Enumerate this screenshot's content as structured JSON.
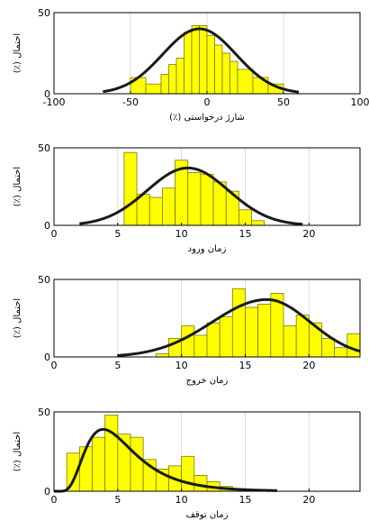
{
  "colors": {
    "bar_fill": "#ffff00",
    "bar_stroke": "#7a7a00",
    "curve": "#1a1a1a",
    "grid": "#dddddd",
    "axes": "#000000"
  },
  "chart_data": [
    {
      "type": "bar",
      "subtype": "histogram-with-fitted-curve",
      "xlabel": "شارژ درخواستی (٪)",
      "ylabel": "احتمال (٪)",
      "xlim": [
        -100,
        100
      ],
      "ylim": [
        0,
        50
      ],
      "xticks": [
        "-100",
        "-50",
        "0",
        "50",
        "100"
      ],
      "yticks": [
        "0",
        "50"
      ],
      "grid": true,
      "bins": [
        {
          "x0": -50,
          "x1": -40,
          "y": 10
        },
        {
          "x0": -40,
          "x1": -30,
          "y": 6
        },
        {
          "x0": -30,
          "x1": -25,
          "y": 12
        },
        {
          "x0": -25,
          "x1": -20,
          "y": 18
        },
        {
          "x0": -20,
          "x1": -15,
          "y": 22
        },
        {
          "x0": -15,
          "x1": -10,
          "y": 38
        },
        {
          "x0": -10,
          "x1": -5,
          "y": 42
        },
        {
          "x0": -5,
          "x1": 0,
          "y": 42
        },
        {
          "x0": 0,
          "x1": 5,
          "y": 36
        },
        {
          "x0": 5,
          "x1": 10,
          "y": 30
        },
        {
          "x0": 10,
          "x1": 15,
          "y": 25
        },
        {
          "x0": 15,
          "x1": 20,
          "y": 20
        },
        {
          "x0": 20,
          "x1": 30,
          "y": 15
        },
        {
          "x0": 30,
          "x1": 40,
          "y": 10
        },
        {
          "x0": 40,
          "x1": 50,
          "y": 6
        }
      ],
      "curve": {
        "distribution": "normal",
        "mean": -5,
        "sd": 24,
        "peak": 40,
        "xrange": [
          -68,
          60
        ]
      }
    },
    {
      "type": "bar",
      "subtype": "histogram-with-fitted-curve",
      "xlabel": "زمان ورود",
      "ylabel": "احتمال (٪)",
      "xlim": [
        0,
        24
      ],
      "ylim": [
        0,
        50
      ],
      "xticks": [
        "0",
        "5",
        "10",
        "15",
        "20"
      ],
      "yticks": [
        "0",
        "50"
      ],
      "grid": true,
      "bins": [
        {
          "x0": 5.5,
          "x1": 6.5,
          "y": 47
        },
        {
          "x0": 6.5,
          "x1": 7.5,
          "y": 20
        },
        {
          "x0": 7.5,
          "x1": 8.5,
          "y": 18
        },
        {
          "x0": 8.5,
          "x1": 9.5,
          "y": 24
        },
        {
          "x0": 9.5,
          "x1": 10.5,
          "y": 42
        },
        {
          "x0": 10.5,
          "x1": 11.5,
          "y": 34
        },
        {
          "x0": 11.5,
          "x1": 12.5,
          "y": 33
        },
        {
          "x0": 12.5,
          "x1": 13.5,
          "y": 28
        },
        {
          "x0": 13.5,
          "x1": 14.5,
          "y": 22
        },
        {
          "x0": 14.5,
          "x1": 15.5,
          "y": 10
        },
        {
          "x0": 15.5,
          "x1": 16.5,
          "y": 3
        }
      ],
      "curve": {
        "distribution": "normal",
        "mean": 10.5,
        "sd": 3.2,
        "peak": 37,
        "xrange": [
          2,
          19.5
        ]
      }
    },
    {
      "type": "bar",
      "subtype": "histogram-with-fitted-curve",
      "xlabel": "زمان خروج",
      "ylabel": "احتمال (٪)",
      "xlim": [
        0,
        24
      ],
      "ylim": [
        0,
        50
      ],
      "xticks": [
        "0",
        "5",
        "10",
        "15",
        "20"
      ],
      "yticks": [
        "0",
        "50"
      ],
      "grid": true,
      "bins": [
        {
          "x0": 8,
          "x1": 9,
          "y": 2
        },
        {
          "x0": 9,
          "x1": 10,
          "y": 12
        },
        {
          "x0": 10,
          "x1": 11,
          "y": 20
        },
        {
          "x0": 11,
          "x1": 12,
          "y": 14
        },
        {
          "x0": 12,
          "x1": 13,
          "y": 22
        },
        {
          "x0": 13,
          "x1": 14,
          "y": 26
        },
        {
          "x0": 14,
          "x1": 15,
          "y": 44
        },
        {
          "x0": 15,
          "x1": 16,
          "y": 32
        },
        {
          "x0": 16,
          "x1": 17,
          "y": 34
        },
        {
          "x0": 17,
          "x1": 18,
          "y": 41
        },
        {
          "x0": 18,
          "x1": 19,
          "y": 20
        },
        {
          "x0": 19,
          "x1": 20,
          "y": 27
        },
        {
          "x0": 20,
          "x1": 21,
          "y": 22
        },
        {
          "x0": 21,
          "x1": 22,
          "y": 12
        },
        {
          "x0": 22,
          "x1": 23,
          "y": 6
        },
        {
          "x0": 23,
          "x1": 24,
          "y": 15
        }
      ],
      "curve": {
        "distribution": "skewed",
        "mode": 16.7,
        "sd_left": 4.3,
        "sd_right": 3.4,
        "peak": 37,
        "xrange": [
          5,
          24
        ]
      }
    },
    {
      "type": "bar",
      "subtype": "histogram-with-fitted-curve",
      "xlabel": "زمان توقف",
      "ylabel": "احتمال (٪)",
      "xlim": [
        0,
        24
      ],
      "ylim": [
        0,
        50
      ],
      "xticks": [
        "0",
        "5",
        "10",
        "15",
        "20"
      ],
      "yticks": [
        "0",
        "50"
      ],
      "grid": true,
      "bins": [
        {
          "x0": 1,
          "x1": 2,
          "y": 24
        },
        {
          "x0": 2,
          "x1": 3,
          "y": 28
        },
        {
          "x0": 3,
          "x1": 4,
          "y": 34
        },
        {
          "x0": 4,
          "x1": 5,
          "y": 48
        },
        {
          "x0": 5,
          "x1": 6,
          "y": 36
        },
        {
          "x0": 6,
          "x1": 7,
          "y": 34
        },
        {
          "x0": 7,
          "x1": 8,
          "y": 20
        },
        {
          "x0": 8,
          "x1": 9,
          "y": 14
        },
        {
          "x0": 9,
          "x1": 10,
          "y": 16
        },
        {
          "x0": 10,
          "x1": 11,
          "y": 22
        },
        {
          "x0": 11,
          "x1": 12,
          "y": 10
        },
        {
          "x0": 12,
          "x1": 13,
          "y": 6
        },
        {
          "x0": 13,
          "x1": 14,
          "y": 3
        }
      ],
      "curve": {
        "distribution": "lognormal",
        "mu": 1.6,
        "sigma": 0.5,
        "peak": 39,
        "xrange": [
          0,
          17.5
        ]
      }
    }
  ]
}
